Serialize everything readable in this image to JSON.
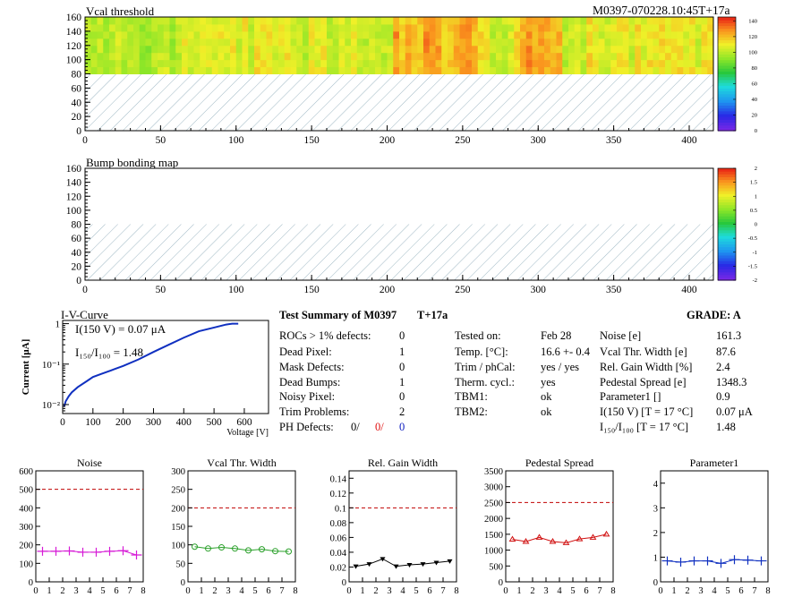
{
  "header": {
    "module_label": "M0397-070228.10:45T+17a"
  },
  "maps": [
    {
      "id": "vcal",
      "title": "Vcal threshold",
      "x_ticks": [
        "0",
        "50",
        "100",
        "150",
        "200",
        "250",
        "300",
        "350",
        "400"
      ],
      "y_ticks": [
        "0",
        "20",
        "40",
        "60",
        "80",
        "100",
        "120",
        "140",
        "160"
      ],
      "palette_ticks": [
        "0",
        "20",
        "40",
        "60",
        "80",
        "100",
        "120",
        "140"
      ]
    },
    {
      "id": "bump",
      "title": "Bump bonding map",
      "x_ticks": [
        "0",
        "50",
        "100",
        "150",
        "200",
        "250",
        "300",
        "350",
        "400"
      ],
      "y_ticks": [
        "0",
        "20",
        "40",
        "60",
        "80",
        "100",
        "120",
        "140",
        "160"
      ],
      "palette_ticks": [
        "-2",
        "-1.5",
        "-1",
        "-0.5",
        "0",
        "0.5",
        "1",
        "1.5",
        "2"
      ]
    }
  ],
  "iv": {
    "title": "I-V-Curve",
    "ylabel": "Current [μA]",
    "xlabel": "Voltage [V]",
    "x_ticks": [
      "0",
      "100",
      "200",
      "300",
      "400",
      "500",
      "600"
    ],
    "y_ticks": [
      "1",
      "10⁻¹",
      "10⁻²"
    ],
    "legend_i150": "I(150 V) = 0.07 μA",
    "legend_ratio": "I₁₅₀/I₁₀₀ =  1.48"
  },
  "summary": {
    "title": "Test Summary of M0397",
    "tag": "T+17a",
    "grade": "GRADE:  A",
    "col1": [
      {
        "label": "ROCs > 1% defects:",
        "value": "0"
      },
      {
        "label": "Dead Pixel:",
        "value": "1"
      },
      {
        "label": "Mask Defects:",
        "value": "0"
      },
      {
        "label": "Dead Bumps:",
        "value": "1"
      },
      {
        "label": "Noisy Pixel:",
        "value": "0"
      },
      {
        "label": "Trim Problems:",
        "value": "2"
      }
    ],
    "ph_label": "PH Defects:",
    "ph_v1": "0/",
    "ph_v2": "0/",
    "ph_v3": "0",
    "col2": [
      {
        "label": "Tested on:",
        "value": "Feb 28"
      },
      {
        "label": "Temp. [°C]:",
        "value": "16.6 +- 0.4"
      },
      {
        "label": "Trim / phCal:",
        "value": "yes / yes"
      },
      {
        "label": "Therm. cycl.:",
        "value": "yes"
      },
      {
        "label": "TBM1:",
        "value": "ok"
      },
      {
        "label": "TBM2:",
        "value": "ok"
      }
    ],
    "col3": [
      {
        "label": "Noise [e]",
        "value": "161.3"
      },
      {
        "label": "Vcal Thr. Width [e]",
        "value": "87.6"
      },
      {
        "label": "Rel. Gain Width [%]",
        "value": "2.4"
      },
      {
        "label": "Pedestal Spread [e]",
        "value": "1348.3"
      },
      {
        "label": "Parameter1 []",
        "value": "0.9"
      },
      {
        "label": "I(150 V) [T = 17 °C]",
        "value": "0.07 μA"
      },
      {
        "label": "I₁₅₀/I₁₀₀   [T = 17 °C]",
        "value": "1.48"
      }
    ]
  },
  "chart_data": [
    {
      "type": "heatmap",
      "title": "Vcal threshold",
      "xlim": [
        0,
        416
      ],
      "ylim": [
        0,
        160
      ],
      "z_range": [
        0,
        140
      ],
      "filled_rows": [
        80,
        160
      ],
      "typical_value": 100
    },
    {
      "type": "heatmap",
      "title": "Bump bonding map",
      "xlim": [
        0,
        416
      ],
      "ylim": [
        0,
        160
      ],
      "z_range": [
        -2,
        2
      ],
      "filled_rows": [
        80,
        160
      ]
    },
    {
      "type": "line",
      "title": "I-V-Curve",
      "xlabel": "Voltage [V]",
      "ylabel": "Current [μA]",
      "yscale": "log",
      "xlim": [
        0,
        680
      ],
      "ylim": [
        0.006,
        1.2
      ],
      "x": [
        5,
        10,
        20,
        30,
        50,
        80,
        100,
        130,
        160,
        200,
        250,
        300,
        350,
        400,
        450,
        500,
        540,
        560,
        580
      ],
      "y": [
        0.009,
        0.012,
        0.016,
        0.02,
        0.027,
        0.038,
        0.048,
        0.058,
        0.07,
        0.09,
        0.13,
        0.2,
        0.3,
        0.45,
        0.65,
        0.8,
        0.95,
        1.0,
        1.0
      ]
    },
    {
      "type": "line",
      "title": "Noise",
      "xlim": [
        0,
        8
      ],
      "ylim": [
        0,
        600
      ],
      "y_ticks": [
        0,
        100,
        200,
        300,
        400,
        500,
        600
      ],
      "reference": 500,
      "x": [
        0.5,
        1.5,
        2.5,
        3.5,
        4.5,
        5.5,
        6.5,
        7.5
      ],
      "y": [
        165,
        165,
        167,
        160,
        160,
        165,
        168,
        145
      ]
    },
    {
      "type": "line",
      "title": "Vcal Thr. Width",
      "xlim": [
        0,
        8
      ],
      "ylim": [
        0,
        300
      ],
      "y_ticks": [
        0,
        50,
        100,
        150,
        200,
        250,
        300
      ],
      "reference": 200,
      "x": [
        0.5,
        1.5,
        2.5,
        3.5,
        4.5,
        5.5,
        6.5,
        7.5
      ],
      "y": [
        95,
        90,
        93,
        90,
        85,
        88,
        83,
        82
      ]
    },
    {
      "type": "line",
      "title": "Rel. Gain Width",
      "xlim": [
        0,
        8
      ],
      "ylim": [
        0,
        0.15
      ],
      "y_ticks": [
        0,
        0.02,
        0.04,
        0.06,
        0.08,
        0.1,
        0.12,
        0.14
      ],
      "reference": 0.1,
      "x": [
        0.5,
        1.5,
        2.5,
        3.5,
        4.5,
        5.5,
        6.5,
        7.5
      ],
      "y": [
        0.021,
        0.024,
        0.031,
        0.021,
        0.023,
        0.024,
        0.026,
        0.028
      ]
    },
    {
      "type": "line",
      "title": "Pedestal Spread",
      "xlim": [
        0,
        8
      ],
      "ylim": [
        0,
        3500
      ],
      "y_ticks": [
        0,
        500,
        1000,
        1500,
        2000,
        2500,
        3000,
        3500
      ],
      "reference": 2500,
      "x": [
        0.5,
        1.5,
        2.5,
        3.5,
        4.5,
        5.5,
        6.5,
        7.5
      ],
      "y": [
        1340,
        1270,
        1400,
        1270,
        1230,
        1350,
        1400,
        1500
      ]
    },
    {
      "type": "line",
      "title": "Parameter1",
      "xlim": [
        0,
        8
      ],
      "ylim": [
        0,
        4.5
      ],
      "y_ticks": [
        0,
        1,
        2,
        3,
        4
      ],
      "x": [
        0.5,
        1.5,
        2.5,
        3.5,
        4.5,
        5.5,
        6.5,
        7.5
      ],
      "y": [
        0.85,
        0.8,
        0.85,
        0.85,
        0.75,
        0.9,
        0.88,
        0.85
      ]
    }
  ],
  "colors": {
    "noise": "#d61ad6",
    "vcal_width": "#2aa02a",
    "gain": "#000000",
    "pedestal": "#d01010",
    "param1": "#1030c0",
    "iv": "#1030c0",
    "reference": "#c00000"
  }
}
